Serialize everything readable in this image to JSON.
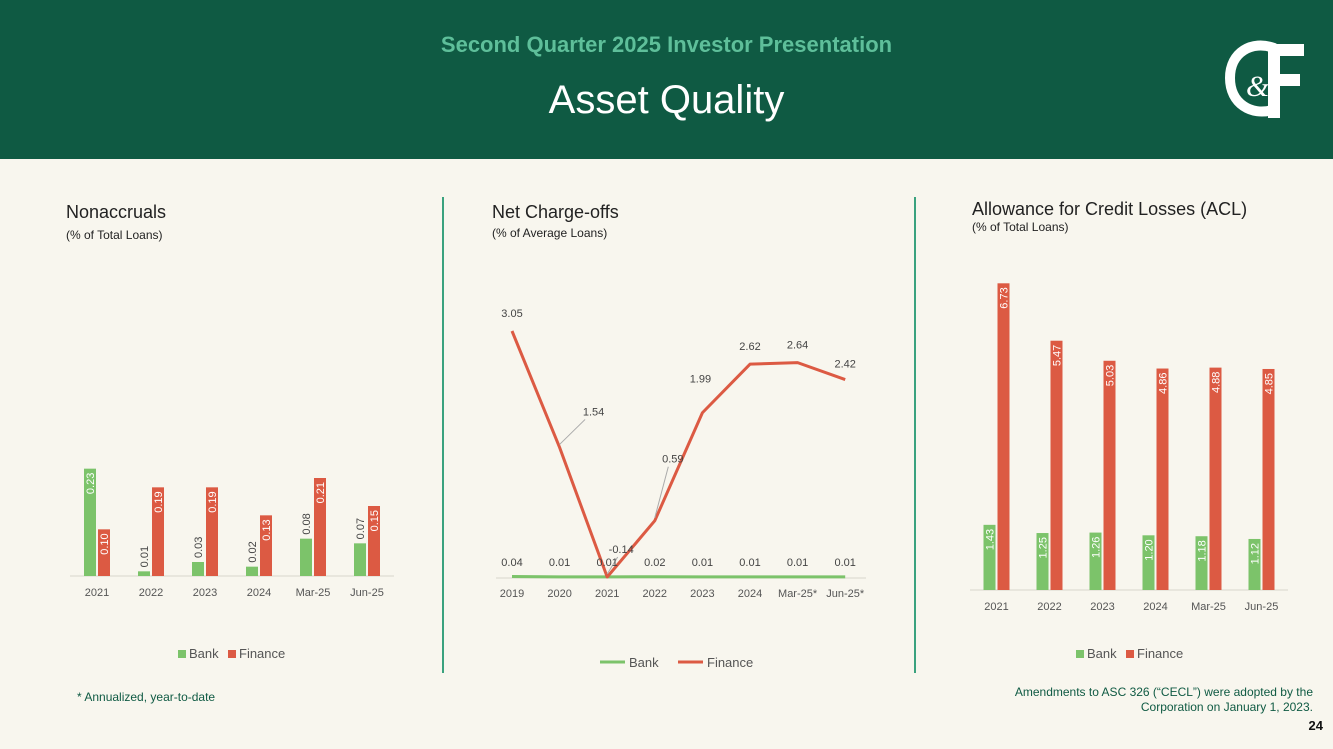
{
  "header": {
    "subtitle": "Second Quarter 2025 Investor Presentation",
    "title": "Asset Quality",
    "logo_text": "C&F"
  },
  "colors": {
    "bank": "#7cc36a",
    "finance": "#dc5a43",
    "header_bg": "#0f5a43",
    "accent": "#5ebf9a"
  },
  "panels": {
    "nonaccruals": {
      "title": "Nonaccruals",
      "subtitle": "(% of Total Loans)"
    },
    "chargeoffs": {
      "title": "Net Charge-offs",
      "subtitle": "(% of Average Loans)"
    },
    "acl": {
      "title": "Allowance for Credit Losses (ACL)",
      "subtitle": "(% of Total Loans)"
    }
  },
  "legend": {
    "bank": "Bank",
    "finance": "Finance"
  },
  "footnotes": {
    "left": "* Annualized, year-to-date",
    "right_line1": "Amendments to ASC 326 (“CECL”) were adopted by the",
    "right_line2": "Corporation on January 1, 2023."
  },
  "page_number": "24",
  "chart_data": [
    {
      "type": "bar",
      "title": "Nonaccruals",
      "subtitle": "(% of Total Loans)",
      "categories": [
        "2021",
        "2022",
        "2023",
        "2024",
        "Mar-25",
        "Jun-25"
      ],
      "series": [
        {
          "name": "Bank",
          "values": [
            0.23,
            0.01,
            0.03,
            0.02,
            0.08,
            0.07
          ]
        },
        {
          "name": "Finance",
          "values": [
            0.1,
            0.19,
            0.19,
            0.13,
            0.21,
            0.15
          ]
        }
      ],
      "labels": {
        "Bank": [
          "0.23",
          "0.01",
          "0.03",
          "0.02",
          "0.08",
          "0.07"
        ],
        "Finance": [
          "0.10",
          "0.19",
          "0.19",
          "0.13",
          "0.21",
          "0.15"
        ]
      },
      "ylim": [
        0,
        0.6
      ],
      "legend": "bottom"
    },
    {
      "type": "line",
      "title": "Net Charge-offs",
      "subtitle": "(% of Average Loans)",
      "categories": [
        "2019",
        "2020",
        "2021",
        "2022",
        "2023",
        "2024",
        "Mar-25*",
        "Jun-25*"
      ],
      "series": [
        {
          "name": "Bank",
          "values": [
            0.04,
            0.01,
            0.01,
            0.02,
            0.01,
            0.01,
            0.01,
            0.01
          ]
        },
        {
          "name": "Finance",
          "values": [
            3.05,
            1.54,
            -0.14,
            0.59,
            1.99,
            2.62,
            2.64,
            2.42
          ]
        }
      ],
      "labels": {
        "Bank": [
          "0.04",
          "0.01",
          "0.01",
          "0.02",
          "0.01",
          "0.01",
          "0.01",
          "0.01"
        ],
        "Finance": [
          "3.05",
          "1.54",
          "-0.14",
          "0.59",
          "1.99",
          "2.62",
          "2.64",
          "2.42"
        ]
      },
      "ylim": [
        -0.14,
        3.3
      ],
      "legend": "bottom"
    },
    {
      "type": "bar",
      "title": "Allowance for Credit Losses (ACL)",
      "subtitle": "(% of Total Loans)",
      "categories": [
        "2021",
        "2022",
        "2023",
        "2024",
        "Mar-25",
        "Jun-25"
      ],
      "series": [
        {
          "name": "Bank",
          "values": [
            1.43,
            1.25,
            1.26,
            1.2,
            1.18,
            1.12
          ]
        },
        {
          "name": "Finance",
          "values": [
            6.73,
            5.47,
            5.03,
            4.86,
            4.88,
            4.85
          ]
        }
      ],
      "labels": {
        "Bank": [
          "1.43",
          "1.25",
          "1.26",
          "1.20",
          "1.18",
          "1.12"
        ],
        "Finance": [
          "6.73",
          "5.47",
          "5.03",
          "4.86",
          "4.88",
          "4.85"
        ]
      },
      "ylim": [
        0,
        7
      ],
      "legend": "bottom"
    }
  ]
}
